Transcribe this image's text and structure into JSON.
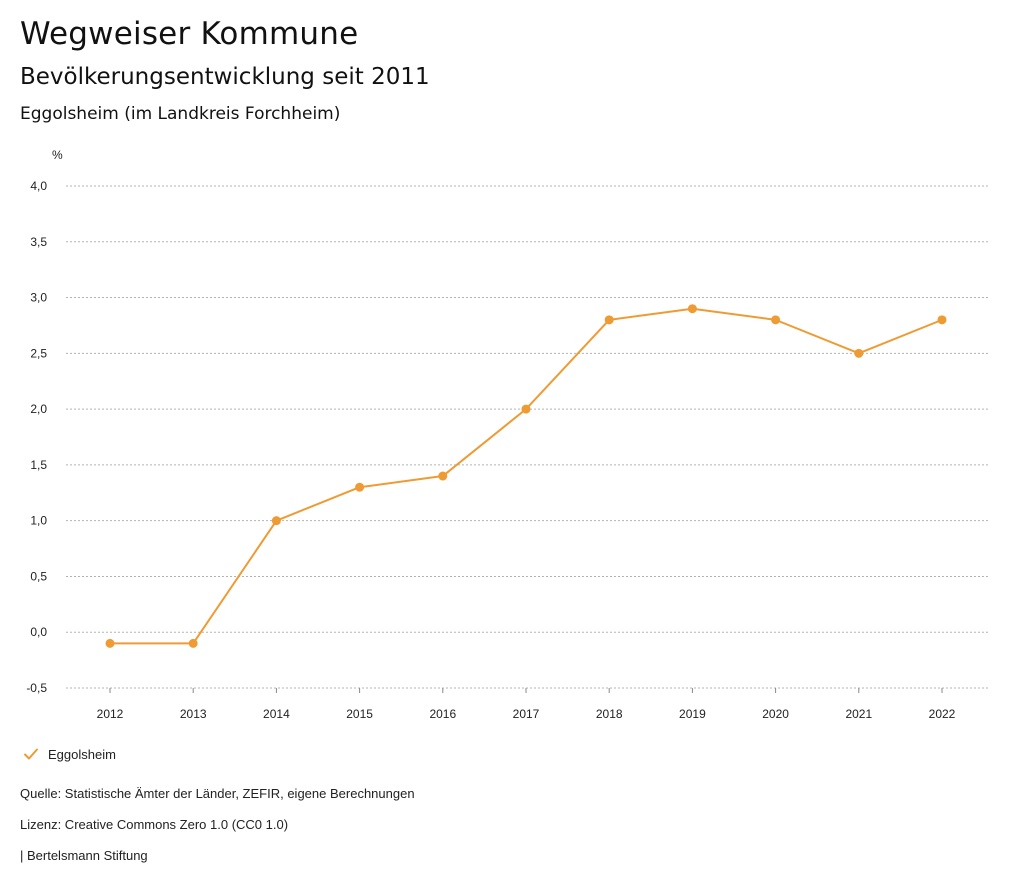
{
  "header": {
    "title": "Wegweiser Kommune",
    "subtitle": "Bevölkerungsentwicklung seit 2011",
    "region": "Eggolsheim (im Landkreis Forchheim)"
  },
  "chart_data": {
    "type": "line",
    "unit_label": "%",
    "x": [
      "2012",
      "2013",
      "2014",
      "2015",
      "2016",
      "2017",
      "2018",
      "2019",
      "2020",
      "2021",
      "2022"
    ],
    "series": [
      {
        "name": "Eggolsheim",
        "color": "#ef9b34",
        "values": [
          -0.1,
          -0.1,
          1.0,
          1.3,
          1.4,
          2.0,
          2.8,
          2.9,
          2.8,
          2.5,
          2.8
        ]
      }
    ],
    "ylim": [
      -0.5,
      4.0
    ],
    "yticks": [
      -0.5,
      0.0,
      0.5,
      1.0,
      1.5,
      2.0,
      2.5,
      3.0,
      3.5,
      4.0
    ],
    "ytick_labels": [
      "-0,5",
      "0,0",
      "0,5",
      "1,0",
      "1,5",
      "2,0",
      "2,5",
      "3,0",
      "3,5",
      "4,0"
    ],
    "grid": true,
    "legend": "bottom-left"
  },
  "legend": {
    "label": "Eggolsheim"
  },
  "footer": {
    "source": "Quelle: Statistische Ämter der Länder, ZEFIR, eigene Berechnungen",
    "license": "Lizenz: Creative Commons Zero 1.0 (CC0 1.0)",
    "publisher": "| Bertelsmann Stiftung"
  }
}
